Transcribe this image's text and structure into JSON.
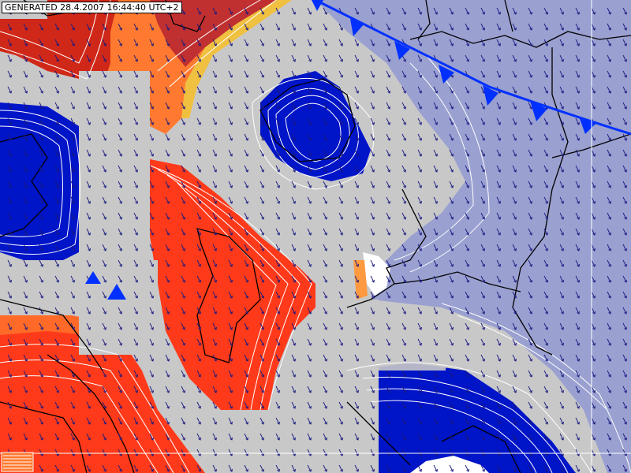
{
  "header": {
    "generated_label": "GENERATED 28.4.2007 16:44:40 UTC+2"
  },
  "map": {
    "background_color": "#c8c8c8",
    "colors": {
      "warm_dark": "#d02818",
      "warm_mid": "#ff3a1a",
      "warm_orange": "#ff7a30",
      "warm_yellow": "#f0c040",
      "cold_dark": "#0014c8",
      "cold_light": "#9aa0d0",
      "front_line": "#0030ff",
      "borders": "#000000",
      "contours": "#ffffff",
      "arrows": "#1a1a80",
      "land_white": "#ffffff"
    },
    "regions": [
      {
        "name": "warm-region-northwest",
        "tone": "warm_dark"
      },
      {
        "name": "warm-region-north",
        "tone": "warm_orange"
      },
      {
        "name": "warm-region-central",
        "tone": "warm_mid"
      },
      {
        "name": "warm-region-west",
        "tone": "warm_mid"
      },
      {
        "name": "cold-region-north",
        "tone": "cold_dark"
      },
      {
        "name": "cold-region-west",
        "tone": "cold_dark"
      },
      {
        "name": "cold-region-south",
        "tone": "cold_dark"
      },
      {
        "name": "cold-region-east",
        "tone": "cold_light"
      }
    ],
    "fronts": [
      {
        "name": "cold-front",
        "type": "cold"
      }
    ],
    "legend_icon": "hatched-box-icon"
  }
}
